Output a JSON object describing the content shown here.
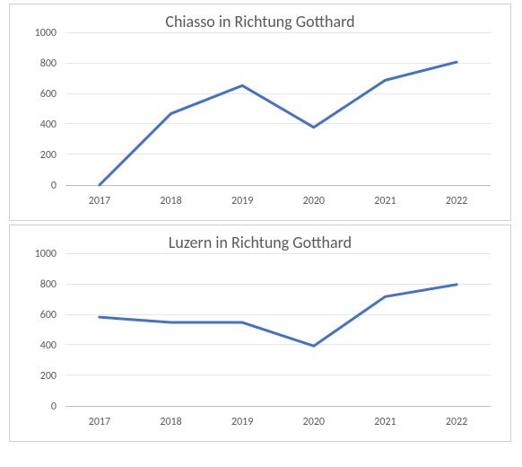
{
  "charts": [
    {
      "id": "chiasso",
      "title": "Chiasso in Richtung Gotthard",
      "type": "line",
      "categories": [
        "2017",
        "2018",
        "2019",
        "2020",
        "2021",
        "2022"
      ],
      "values": [
        0,
        470,
        655,
        380,
        690,
        810
      ],
      "ylim": [
        0,
        1000
      ],
      "ytick_step": 200,
      "line_color": "#4472c4",
      "line_width": 3,
      "background_color": "#ffffff",
      "grid_color": "#e6e6e6",
      "axis_color": "#bfbfbf",
      "text_color": "#595959",
      "title_fontsize": 18,
      "tick_fontsize": 12
    },
    {
      "id": "luzern",
      "title": "Luzern in Richtung Gotthard",
      "type": "line",
      "categories": [
        "2017",
        "2018",
        "2019",
        "2020",
        "2021",
        "2022"
      ],
      "values": [
        585,
        550,
        550,
        395,
        720,
        800
      ],
      "ylim": [
        0,
        1000
      ],
      "ytick_step": 200,
      "line_color": "#4472c4",
      "line_width": 3,
      "background_color": "#ffffff",
      "grid_color": "#e6e6e6",
      "axis_color": "#bfbfbf",
      "text_color": "#595959",
      "title_fontsize": 18,
      "tick_fontsize": 12
    }
  ]
}
